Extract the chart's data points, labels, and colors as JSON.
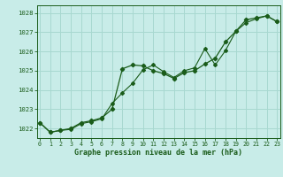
{
  "title": "Graphe pression niveau de la mer (hPa)",
  "background_color": "#c8ece8",
  "grid_color": "#a8d8d0",
  "line_color": "#1a5c1a",
  "xlim": [
    -0.3,
    23.3
  ],
  "ylim": [
    1021.5,
    1028.4
  ],
  "yticks": [
    1022,
    1023,
    1024,
    1025,
    1026,
    1027,
    1028
  ],
  "xticks": [
    0,
    1,
    2,
    3,
    4,
    5,
    6,
    7,
    8,
    9,
    10,
    11,
    12,
    13,
    14,
    15,
    16,
    17,
    18,
    19,
    20,
    21,
    22,
    23
  ],
  "series1_x": [
    0,
    1,
    2,
    3,
    4,
    5,
    6,
    7,
    8,
    9,
    10,
    11,
    12,
    13,
    14,
    15,
    16,
    17,
    18,
    19,
    20,
    21,
    22,
    23
  ],
  "series1_y": [
    1022.3,
    1021.8,
    1021.9,
    1022.0,
    1022.3,
    1022.4,
    1022.55,
    1023.0,
    1025.1,
    1025.3,
    1025.25,
    1025.0,
    1024.85,
    1024.6,
    1024.9,
    1025.0,
    1025.35,
    1025.65,
    1026.5,
    1027.05,
    1027.65,
    1027.75,
    1027.85,
    1027.55
  ],
  "series2_x": [
    0,
    1,
    2,
    3,
    4,
    5,
    6,
    7,
    8,
    9,
    10,
    11,
    12,
    13,
    14,
    15,
    16,
    17,
    18,
    19,
    20,
    21,
    22,
    23
  ],
  "series2_y": [
    1022.3,
    1021.8,
    1021.9,
    1021.95,
    1022.25,
    1022.35,
    1022.5,
    1023.3,
    1023.85,
    1024.35,
    1025.05,
    1025.3,
    1024.95,
    1024.65,
    1025.0,
    1025.15,
    1026.15,
    1025.3,
    1026.05,
    1027.05,
    1027.5,
    1027.7,
    1027.85,
    1027.55
  ]
}
